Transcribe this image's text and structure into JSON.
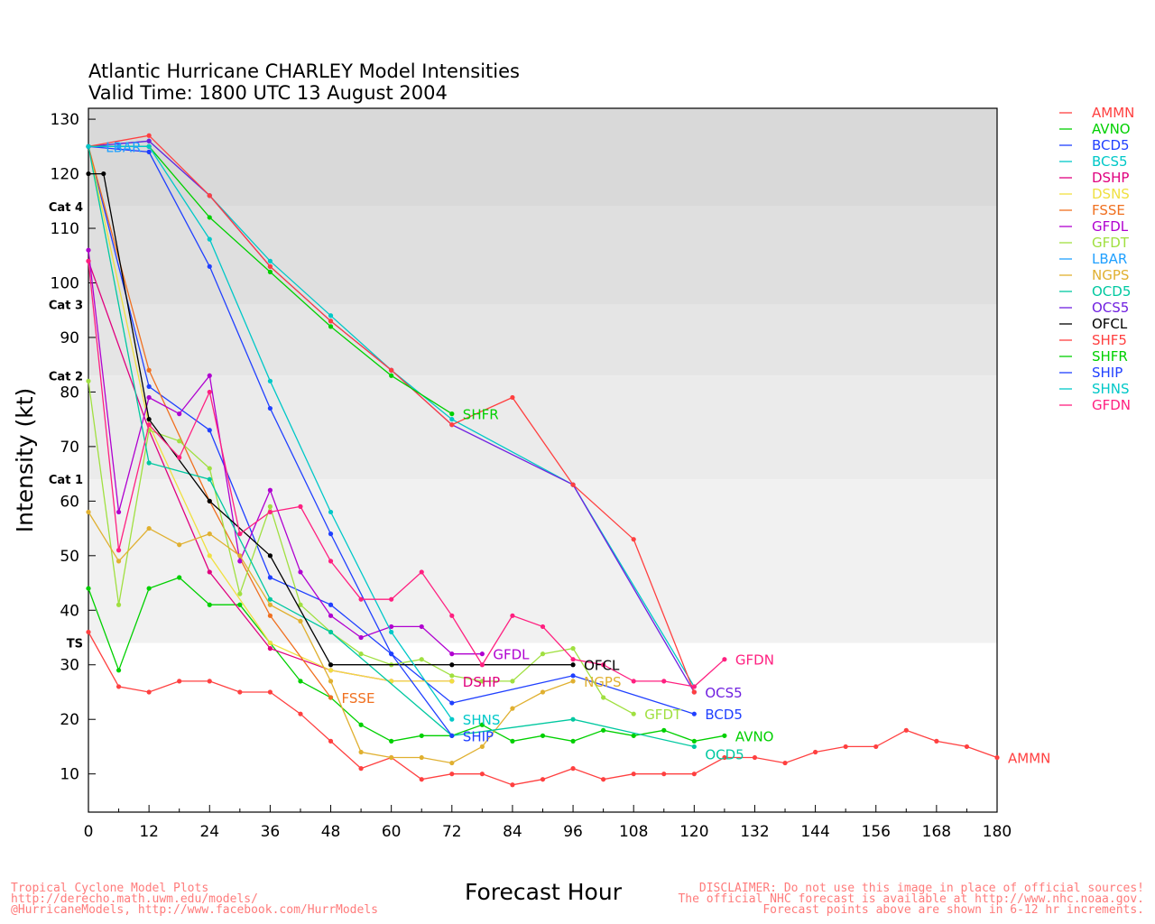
{
  "chart_data": {
    "type": "line",
    "title": "Atlantic Hurricane CHARLEY Model Intensities",
    "subtitle": "Valid Time: 1800 UTC 13 August 2004",
    "xlabel": "Forecast Hour",
    "ylabel": "Intensity (kt)",
    "xlim": [
      0,
      180
    ],
    "ylim": [
      3,
      132
    ],
    "xticks": [
      0,
      12,
      24,
      36,
      48,
      60,
      72,
      84,
      96,
      108,
      120,
      132,
      144,
      156,
      168,
      180
    ],
    "yticks": [
      10,
      20,
      30,
      40,
      50,
      60,
      70,
      80,
      90,
      100,
      110,
      120,
      130
    ],
    "categories": [
      {
        "label": "TS",
        "min": 34,
        "max": 64,
        "color": "#f1f1f1"
      },
      {
        "label": "Cat 1",
        "min": 64,
        "max": 83,
        "color": "#ebebeb"
      },
      {
        "label": "Cat 2",
        "min": 83,
        "max": 96,
        "color": "#e5e5e5"
      },
      {
        "label": "Cat 3",
        "min": 96,
        "max": 114,
        "color": "#dfdfdf"
      },
      {
        "label": "Cat 4",
        "min": 114,
        "max": 132,
        "color": "#d9d9d9"
      }
    ],
    "legend_placement": "right",
    "series": [
      {
        "name": "AMMN",
        "color": "#ff4040",
        "end_label": "AMMN",
        "x": [
          0,
          6,
          12,
          18,
          24,
          30,
          36,
          42,
          48,
          54,
          60,
          66,
          72,
          78,
          84,
          90,
          96,
          102,
          108,
          114,
          120,
          126,
          132,
          138,
          144,
          150,
          156,
          162,
          168,
          174,
          180
        ],
        "y": [
          36,
          26,
          25,
          27,
          27,
          25,
          25,
          21,
          16,
          11,
          13,
          9,
          10,
          10,
          8,
          9,
          11,
          9,
          10,
          10,
          10,
          13,
          13,
          12,
          14,
          15,
          15,
          18,
          16,
          15,
          13
        ]
      },
      {
        "name": "AVNO",
        "color": "#00d000",
        "end_label": "AVNO",
        "x": [
          0,
          6,
          12,
          18,
          24,
          30,
          36,
          42,
          48,
          54,
          60,
          66,
          72,
          78,
          84,
          90,
          96,
          102,
          108,
          114,
          120,
          126
        ],
        "y": [
          44,
          29,
          44,
          46,
          41,
          41,
          34,
          27,
          24,
          19,
          16,
          17,
          17,
          19,
          16,
          17,
          16,
          18,
          17,
          18,
          16,
          17
        ]
      },
      {
        "name": "BCD5",
        "color": "#2040ff",
        "end_label": "BCD5",
        "x": [
          0,
          12,
          24,
          36,
          48,
          60,
          72,
          96,
          120
        ],
        "y": [
          125,
          81,
          73,
          46,
          41,
          32,
          23,
          28,
          21
        ]
      },
      {
        "name": "BCS5",
        "color": "#00c8c8",
        "end_label": "",
        "x": [
          0,
          12,
          24,
          36,
          48,
          60,
          72,
          96,
          120
        ],
        "y": [
          125,
          126,
          116,
          104,
          94,
          84,
          75,
          63,
          26
        ]
      },
      {
        "name": "DSHP",
        "color": "#e0007f",
        "end_label": "DSHP",
        "x": [
          0,
          12,
          24,
          36,
          48,
          60,
          72
        ],
        "y": [
          104,
          73,
          47,
          33,
          29,
          27,
          27
        ]
      },
      {
        "name": "DSNS",
        "color": "#f0e040",
        "end_label": "",
        "x": [
          0,
          12,
          24,
          36,
          48,
          60,
          72
        ],
        "y": [
          125,
          74,
          50,
          34,
          29,
          27,
          27
        ]
      },
      {
        "name": "FSSE",
        "color": "#f07020",
        "end_label": "FSSE",
        "x": [
          0,
          12,
          24,
          36,
          48
        ],
        "y": [
          125,
          84,
          60,
          39,
          24
        ]
      },
      {
        "name": "GFDL",
        "color": "#b000d0",
        "end_label": "GFDL",
        "x": [
          0,
          6,
          12,
          18,
          24,
          30,
          36,
          42,
          48,
          54,
          60,
          66,
          72,
          78
        ],
        "y": [
          106,
          58,
          79,
          76,
          83,
          49,
          62,
          47,
          39,
          35,
          37,
          37,
          32,
          32
        ]
      },
      {
        "name": "GFDT",
        "color": "#a0e040",
        "end_label": "GFDT",
        "x": [
          0,
          6,
          12,
          18,
          24,
          30,
          36,
          42,
          48,
          54,
          60,
          66,
          72,
          78,
          84,
          90,
          96,
          102,
          108
        ],
        "y": [
          82,
          41,
          73,
          71,
          66,
          43,
          59,
          41,
          36,
          32,
          30,
          31,
          28,
          27,
          27,
          32,
          33,
          24,
          21
        ]
      },
      {
        "name": "LBAR",
        "color": "#20a0ff",
        "end_label": "LBAR",
        "x": [
          0,
          6,
          12
        ],
        "y": [
          125,
          125,
          125
        ]
      },
      {
        "name": "NGPS",
        "color": "#e0b030",
        "end_label": "NGPS",
        "x": [
          0,
          6,
          12,
          18,
          24,
          30,
          36,
          42,
          48,
          54,
          60,
          66,
          72,
          78,
          84,
          90,
          96
        ],
        "y": [
          58,
          49,
          55,
          52,
          54,
          50,
          41,
          38,
          27,
          14,
          13,
          13,
          12,
          15,
          22,
          25,
          27
        ]
      },
      {
        "name": "OCD5",
        "color": "#00c8a0",
        "end_label": "OCD5",
        "x": [
          0,
          12,
          24,
          36,
          48,
          72,
          96,
          120
        ],
        "y": [
          125,
          67,
          64,
          42,
          36,
          17,
          20,
          15
        ]
      },
      {
        "name": "OCS5",
        "color": "#7020e0",
        "end_label": "OCS5",
        "x": [
          0,
          12,
          24,
          36,
          48,
          60,
          72,
          96,
          120
        ],
        "y": [
          125,
          126,
          116,
          103,
          93,
          84,
          74,
          63,
          25
        ]
      },
      {
        "name": "OFCL",
        "color": "#000000",
        "end_label": "OFCL",
        "x": [
          0,
          3,
          12,
          24,
          36,
          48,
          72,
          96
        ],
        "y": [
          120,
          120,
          75,
          60,
          50,
          30,
          30,
          30
        ]
      },
      {
        "name": "SHF5",
        "color": "#ff4040",
        "end_label": "",
        "x": [
          0,
          12,
          24,
          36,
          48,
          60,
          72,
          84,
          96,
          108,
          120
        ],
        "y": [
          125,
          127,
          116,
          103,
          93,
          84,
          74,
          79,
          63,
          53,
          25
        ]
      },
      {
        "name": "SHFR",
        "color": "#00d000",
        "end_label": "SHFR",
        "x": [
          0,
          12,
          24,
          36,
          48,
          60,
          72
        ],
        "y": [
          125,
          125,
          112,
          102,
          92,
          83,
          76
        ]
      },
      {
        "name": "SHIP",
        "color": "#2040ff",
        "end_label": "SHIP",
        "x": [
          0,
          12,
          24,
          36,
          48,
          60,
          72
        ],
        "y": [
          125,
          124,
          103,
          77,
          54,
          32,
          17
        ]
      },
      {
        "name": "SHNS",
        "color": "#00c8c8",
        "end_label": "SHNS",
        "x": [
          0,
          12,
          24,
          36,
          48,
          60,
          72
        ],
        "y": [
          125,
          125,
          108,
          82,
          58,
          36,
          20
        ]
      },
      {
        "name": "GFDN",
        "color": "#ff2080",
        "end_label": "GFDN",
        "x": [
          0,
          6,
          12,
          18,
          24,
          30,
          36,
          42,
          48,
          54,
          60,
          66,
          72,
          78,
          84,
          90,
          96,
          102,
          108,
          114,
          120,
          126
        ],
        "y": [
          104,
          51,
          74,
          68,
          80,
          54,
          58,
          59,
          49,
          42,
          42,
          47,
          39,
          30,
          39,
          37,
          31,
          30,
          27,
          27,
          26,
          31
        ]
      }
    ]
  },
  "footer": {
    "left_line1": "Tropical Cyclone Model Plots",
    "left_line2": "http://derecho.math.uwm.edu/models/",
    "left_line3": "@HurricaneModels, http://www.facebook.com/HurrModels",
    "right_line1": "DISCLAIMER: Do not use this image in place of official sources!",
    "right_line2": "The official NHC forecast is available at http://www.nhc.noaa.gov.",
    "right_line3": "Forecast points above are shown in 6-12 hr increments."
  }
}
